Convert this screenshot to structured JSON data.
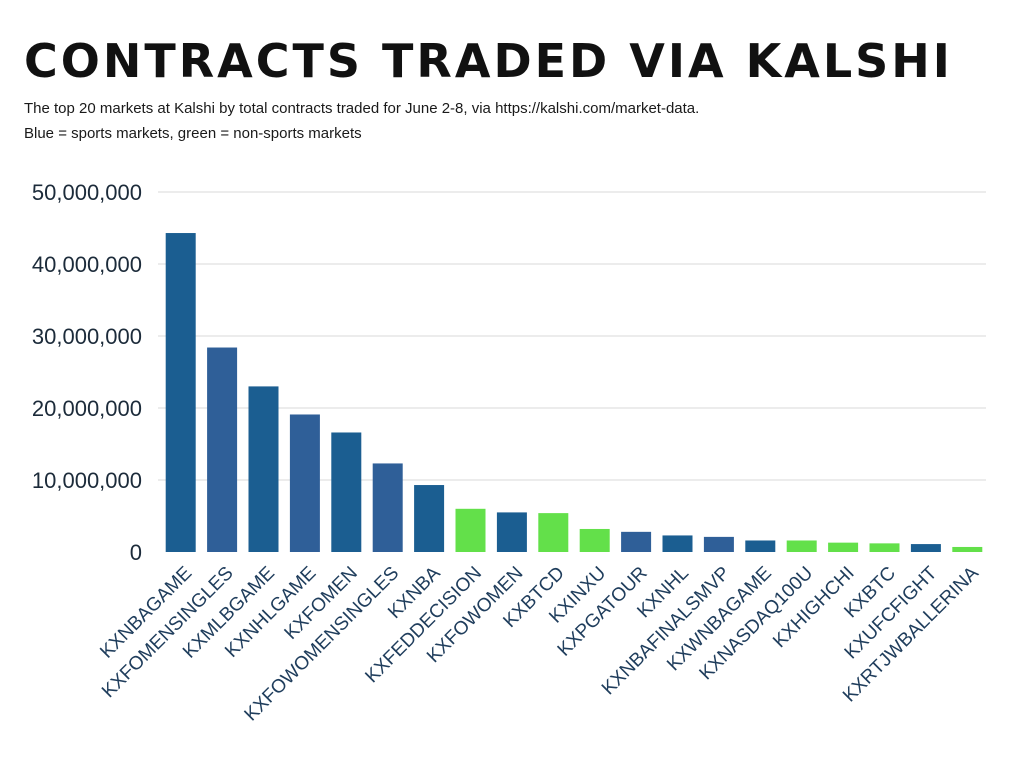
{
  "title": "CONTRACTS TRADED VIA KALSHI",
  "subtitle_line1": "The top 20 markets at Kalshi by total contracts traded for June 2-8, via https://kalshi.com/market-data.",
  "subtitle_line2": "Blue = sports markets, green = non-sports markets",
  "colors": {
    "sports": "#1b5e91",
    "sports_alt": "#2f5f98",
    "non_sports": "#63e04a",
    "grid": "#d9d9d9"
  },
  "chart_data": {
    "type": "bar",
    "title": "CONTRACTS TRADED VIA KALSHI",
    "xlabel": "",
    "ylabel": "",
    "ylim": [
      0,
      50000000
    ],
    "yticks": [
      0,
      10000000,
      20000000,
      30000000,
      40000000,
      50000000
    ],
    "ytick_labels": [
      "0",
      "10,000,000",
      "20,000,000",
      "30,000,000",
      "40,000,000",
      "50,000,000"
    ],
    "grid": "horizontal",
    "categories": [
      "KXNBAGAME",
      "KXFOMENSINGLES",
      "KXMLBGAME",
      "KXNHLGAME",
      "KXFOMEN",
      "KXFOWOMENSINGLES",
      "KXNBA",
      "KXFEDDECISION",
      "KXFOWOMEN",
      "KXBTCD",
      "KXINXU",
      "KXPGATOUR",
      "KXNHL",
      "KXNBAFINALSMVP",
      "KXWNBAGAME",
      "KXNASDAQ100U",
      "KXHIGHCHI",
      "KXBTC",
      "KXUFCFIGHT",
      "KXRTJWBALLERINA"
    ],
    "values": [
      44300000,
      28400000,
      23000000,
      19100000,
      16600000,
      12300000,
      9300000,
      6000000,
      5500000,
      5400000,
      3200000,
      2800000,
      2300000,
      2100000,
      1600000,
      1600000,
      1300000,
      1200000,
      1100000,
      700000
    ],
    "category_type": [
      "sports",
      "sports",
      "sports",
      "sports",
      "sports",
      "sports",
      "sports",
      "non_sports",
      "sports",
      "non_sports",
      "non_sports",
      "sports",
      "sports",
      "sports",
      "sports",
      "non_sports",
      "non_sports",
      "non_sports",
      "sports",
      "non_sports"
    ]
  }
}
